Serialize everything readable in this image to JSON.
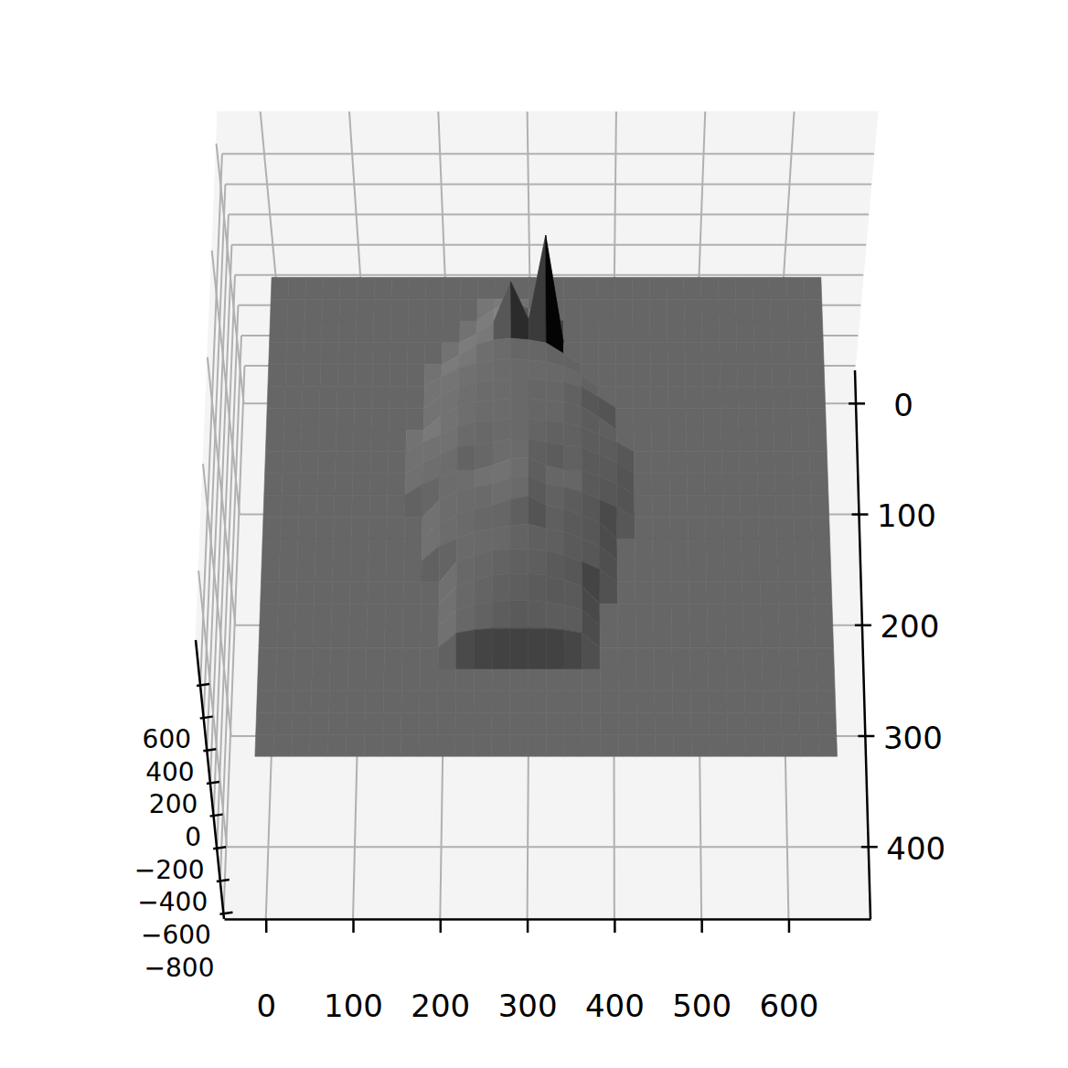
{
  "chart_data": {
    "type": "surface",
    "x": [
      0,
      20,
      40,
      60,
      80,
      100,
      120,
      140,
      160,
      180,
      200,
      220,
      240,
      260,
      280,
      300,
      320,
      340,
      360,
      380,
      400,
      420,
      440,
      460,
      480,
      500,
      520,
      540,
      560,
      580,
      600,
      620,
      640
    ],
    "y": [
      0,
      20,
      40,
      60,
      80,
      100,
      120,
      140,
      160,
      180,
      200,
      220,
      240,
      260,
      280,
      300,
      320,
      340,
      360,
      380,
      400,
      420,
      440
    ],
    "z": [
      [
        0,
        0,
        0,
        0,
        0,
        0,
        0,
        0,
        0,
        0,
        0,
        0,
        0,
        0,
        0,
        0,
        0,
        0,
        0,
        0,
        0,
        0,
        0,
        0,
        0,
        0,
        0,
        0,
        0,
        0,
        0,
        0,
        0
      ],
      [
        0,
        0,
        0,
        0,
        0,
        0,
        0,
        0,
        0,
        0,
        0,
        0,
        0,
        0,
        0,
        0,
        0,
        0,
        0,
        0,
        0,
        0,
        0,
        0,
        0,
        0,
        0,
        0,
        0,
        0,
        0,
        0,
        0
      ],
      [
        0,
        0,
        0,
        0,
        0,
        0,
        0,
        0,
        0,
        0,
        0,
        0,
        0,
        80,
        120,
        80,
        0,
        0,
        0,
        0,
        0,
        0,
        0,
        0,
        0,
        0,
        0,
        0,
        0,
        0,
        0,
        0,
        0
      ],
      [
        0,
        0,
        0,
        0,
        0,
        0,
        0,
        0,
        0,
        0,
        0,
        0,
        60,
        140,
        400,
        150,
        700,
        0,
        0,
        0,
        0,
        0,
        0,
        0,
        0,
        0,
        0,
        0,
        0,
        0,
        0,
        0,
        0
      ],
      [
        0,
        0,
        0,
        0,
        0,
        0,
        0,
        0,
        0,
        0,
        0,
        60,
        130,
        160,
        170,
        160,
        140,
        70,
        0,
        0,
        0,
        0,
        0,
        0,
        0,
        0,
        0,
        0,
        0,
        0,
        0,
        0,
        0
      ],
      [
        0,
        0,
        0,
        0,
        0,
        0,
        0,
        0,
        0,
        0,
        60,
        120,
        150,
        170,
        180,
        170,
        160,
        130,
        70,
        0,
        0,
        0,
        0,
        0,
        0,
        0,
        0,
        0,
        0,
        0,
        0,
        0,
        0
      ],
      [
        0,
        0,
        0,
        0,
        0,
        0,
        0,
        0,
        0,
        0,
        80,
        140,
        170,
        180,
        190,
        190,
        180,
        170,
        140,
        70,
        0,
        0,
        0,
        0,
        0,
        0,
        0,
        0,
        0,
        0,
        0,
        0,
        0
      ],
      [
        0,
        0,
        0,
        0,
        0,
        0,
        0,
        0,
        0,
        0,
        90,
        150,
        180,
        190,
        200,
        200,
        190,
        180,
        150,
        80,
        0,
        0,
        0,
        0,
        0,
        0,
        0,
        0,
        0,
        0,
        0,
        0,
        0
      ],
      [
        0,
        0,
        0,
        0,
        0,
        0,
        0,
        0,
        0,
        60,
        110,
        160,
        190,
        200,
        210,
        210,
        200,
        190,
        160,
        110,
        60,
        0,
        0,
        0,
        0,
        0,
        0,
        0,
        0,
        0,
        0,
        0,
        0
      ],
      [
        0,
        0,
        0,
        0,
        0,
        0,
        0,
        0,
        0,
        70,
        120,
        170,
        180,
        200,
        220,
        220,
        200,
        180,
        170,
        120,
        70,
        0,
        0,
        0,
        0,
        0,
        0,
        0,
        0,
        0,
        0,
        0,
        0
      ],
      [
        0,
        0,
        0,
        0,
        0,
        0,
        0,
        0,
        0,
        70,
        120,
        160,
        160,
        190,
        230,
        240,
        190,
        160,
        160,
        120,
        70,
        0,
        0,
        0,
        0,
        0,
        0,
        0,
        0,
        0,
        0,
        0,
        0
      ],
      [
        0,
        0,
        0,
        0,
        0,
        0,
        0,
        0,
        0,
        0,
        110,
        160,
        190,
        210,
        250,
        260,
        210,
        190,
        160,
        110,
        60,
        0,
        0,
        0,
        0,
        0,
        0,
        0,
        0,
        0,
        0,
        0,
        0
      ],
      [
        0,
        0,
        0,
        0,
        0,
        0,
        0,
        0,
        0,
        0,
        100,
        150,
        190,
        210,
        250,
        270,
        210,
        190,
        150,
        100,
        0,
        0,
        0,
        0,
        0,
        0,
        0,
        0,
        0,
        0,
        0,
        0,
        0
      ],
      [
        0,
        0,
        0,
        0,
        0,
        0,
        0,
        0,
        0,
        0,
        90,
        140,
        180,
        200,
        220,
        230,
        200,
        180,
        140,
        90,
        0,
        0,
        0,
        0,
        0,
        0,
        0,
        0,
        0,
        0,
        0,
        0,
        0
      ],
      [
        0,
        0,
        0,
        0,
        0,
        0,
        0,
        0,
        0,
        0,
        0,
        130,
        170,
        200,
        210,
        210,
        200,
        170,
        130,
        80,
        0,
        0,
        0,
        0,
        0,
        0,
        0,
        0,
        0,
        0,
        0,
        0,
        0
      ],
      [
        0,
        0,
        0,
        0,
        0,
        0,
        0,
        0,
        0,
        0,
        0,
        110,
        150,
        180,
        190,
        190,
        180,
        150,
        110,
        0,
        0,
        0,
        0,
        0,
        0,
        0,
        0,
        0,
        0,
        0,
        0,
        0,
        0
      ],
      [
        0,
        0,
        0,
        0,
        0,
        0,
        0,
        0,
        0,
        0,
        0,
        100,
        130,
        150,
        160,
        160,
        150,
        130,
        100,
        0,
        0,
        0,
        0,
        0,
        0,
        0,
        0,
        0,
        0,
        0,
        0,
        0,
        0
      ],
      [
        0,
        0,
        0,
        0,
        0,
        0,
        0,
        0,
        0,
        0,
        0,
        90,
        110,
        120,
        120,
        120,
        120,
        110,
        90,
        0,
        0,
        0,
        0,
        0,
        0,
        0,
        0,
        0,
        0,
        0,
        0,
        0,
        0
      ],
      [
        0,
        0,
        0,
        0,
        0,
        0,
        0,
        0,
        0,
        0,
        0,
        0,
        0,
        0,
        0,
        0,
        0,
        0,
        0,
        0,
        0,
        0,
        0,
        0,
        0,
        0,
        0,
        0,
        0,
        0,
        0,
        0,
        0
      ],
      [
        0,
        0,
        0,
        0,
        0,
        0,
        0,
        0,
        0,
        0,
        0,
        0,
        0,
        0,
        0,
        0,
        0,
        0,
        0,
        0,
        0,
        0,
        0,
        0,
        0,
        0,
        0,
        0,
        0,
        0,
        0,
        0,
        0
      ],
      [
        0,
        0,
        0,
        0,
        0,
        0,
        0,
        0,
        0,
        0,
        0,
        0,
        0,
        0,
        0,
        0,
        0,
        0,
        0,
        0,
        0,
        0,
        0,
        0,
        0,
        0,
        0,
        0,
        0,
        0,
        0,
        0,
        0
      ],
      [
        0,
        0,
        0,
        0,
        0,
        0,
        0,
        0,
        0,
        0,
        0,
        0,
        0,
        0,
        0,
        0,
        0,
        0,
        0,
        0,
        0,
        0,
        0,
        0,
        0,
        0,
        0,
        0,
        0,
        0,
        0,
        0,
        0
      ],
      [
        0,
        0,
        0,
        0,
        0,
        0,
        0,
        0,
        0,
        0,
        0,
        0,
        0,
        0,
        0,
        0,
        0,
        0,
        0,
        0,
        0,
        0,
        0,
        0,
        0,
        0,
        0,
        0,
        0,
        0,
        0,
        0,
        0
      ]
    ],
    "xlim": [
      -48,
      694
    ],
    "ylim": [
      -30,
      465
    ],
    "zlim": [
      -830,
      880
    ],
    "xticks": [
      0,
      100,
      200,
      300,
      400,
      500,
      600
    ],
    "yticks": [
      0,
      100,
      200,
      300,
      400
    ],
    "zticks": [
      {
        "value": -800,
        "label": "−800"
      },
      {
        "value": -600,
        "label": "−600"
      },
      {
        "value": -400,
        "label": "−400"
      },
      {
        "value": -200,
        "label": "−200"
      },
      0,
      200,
      400,
      600
    ],
    "grid": true,
    "color": "#666666"
  }
}
